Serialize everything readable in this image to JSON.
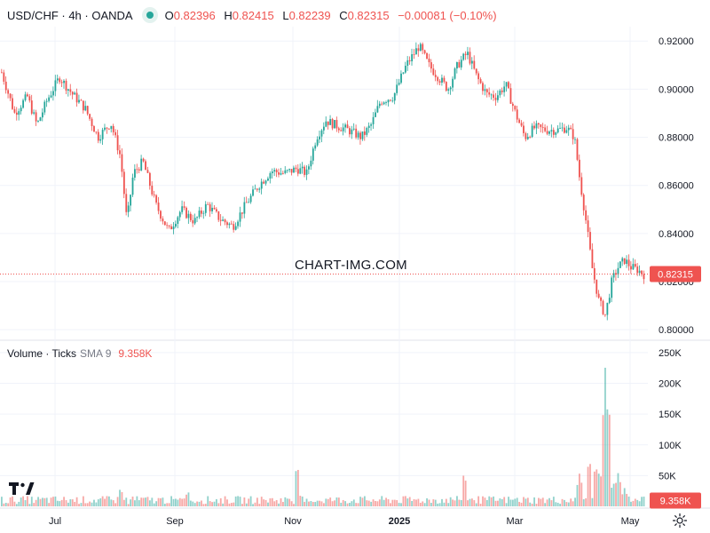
{
  "header": {
    "symbol": "USD/CHF · 4h · OANDA",
    "open_label": "O",
    "open": "0.82396",
    "high_label": "H",
    "high": "0.82415",
    "low_label": "L",
    "low": "0.82239",
    "close_label": "C",
    "close": "0.82315",
    "change": "−0.00081 (−0.10%)"
  },
  "volume_legend": {
    "title": "Volume · Ticks",
    "sma": "SMA 9",
    "value": "9.358K"
  },
  "watermark": "CHART-IMG.COM",
  "colors": {
    "up": "#26a69a",
    "down": "#ef5350",
    "grid": "#f0f3fa",
    "text": "#131722"
  },
  "icons": [
    "eye-icon",
    "tradingview-logo-icon",
    "gear-icon"
  ],
  "chart_data": [
    {
      "type": "candlestick",
      "title": "USD/CHF · 4h · OANDA",
      "price_label": "0.82315",
      "ylim": [
        0.796,
        0.926
      ],
      "y_ticks": [
        "0.80000",
        "0.82000",
        "0.84000",
        "0.86000",
        "0.88000",
        "0.90000",
        "0.92000"
      ],
      "x_ticks": [
        "Jul",
        "Sep",
        "Nov",
        "2025",
        "Mar",
        "May"
      ],
      "last_price": 0.82315,
      "series": [
        {
          "name": "USD/CHF",
          "keypoints": [
            [
              0.0,
              0.907
            ],
            [
              0.02,
              0.89
            ],
            [
              0.04,
              0.897
            ],
            [
              0.055,
              0.885
            ],
            [
              0.07,
              0.895
            ],
            [
              0.09,
              0.905
            ],
            [
              0.11,
              0.898
            ],
            [
              0.13,
              0.892
            ],
            [
              0.15,
              0.88
            ],
            [
              0.17,
              0.886
            ],
            [
              0.185,
              0.872
            ],
            [
              0.195,
              0.845
            ],
            [
              0.205,
              0.865
            ],
            [
              0.22,
              0.87
            ],
            [
              0.24,
              0.852
            ],
            [
              0.26,
              0.841
            ],
            [
              0.28,
              0.85
            ],
            [
              0.3,
              0.845
            ],
            [
              0.32,
              0.852
            ],
            [
              0.34,
              0.846
            ],
            [
              0.36,
              0.843
            ],
            [
              0.38,
              0.852
            ],
            [
              0.4,
              0.86
            ],
            [
              0.42,
              0.866
            ],
            [
              0.44,
              0.865
            ],
            [
              0.46,
              0.867
            ],
            [
              0.475,
              0.865
            ],
            [
              0.49,
              0.88
            ],
            [
              0.505,
              0.887
            ],
            [
              0.52,
              0.885
            ],
            [
              0.54,
              0.883
            ],
            [
              0.56,
              0.88
            ],
            [
              0.575,
              0.885
            ],
            [
              0.59,
              0.895
            ],
            [
              0.61,
              0.897
            ],
            [
              0.63,
              0.91
            ],
            [
              0.65,
              0.918
            ],
            [
              0.665,
              0.91
            ],
            [
              0.68,
              0.905
            ],
            [
              0.695,
              0.9
            ],
            [
              0.71,
              0.91
            ],
            [
              0.725,
              0.915
            ],
            [
              0.74,
              0.905
            ],
            [
              0.755,
              0.898
            ],
            [
              0.77,
              0.897
            ],
            [
              0.785,
              0.902
            ],
            [
              0.8,
              0.89
            ],
            [
              0.815,
              0.88
            ],
            [
              0.83,
              0.884
            ],
            [
              0.85,
              0.883
            ],
            [
              0.865,
              0.883
            ],
            [
              0.88,
              0.884
            ],
            [
              0.892,
              0.88
            ],
            [
              0.9,
              0.863
            ],
            [
              0.91,
              0.845
            ],
            [
              0.92,
              0.825
            ],
            [
              0.93,
              0.812
            ],
            [
              0.94,
              0.806
            ],
            [
              0.95,
              0.82
            ],
            [
              0.96,
              0.826
            ],
            [
              0.97,
              0.829
            ],
            [
              0.98,
              0.826
            ],
            [
              0.99,
              0.825
            ],
            [
              1.0,
              0.823
            ]
          ]
        }
      ]
    },
    {
      "type": "bar",
      "title": "Volume · Ticks",
      "sma_label": "SMA 9",
      "last_value": "9.358K",
      "ylim": [
        0,
        260000
      ],
      "y_ticks": [
        "50K",
        "100K",
        "150K",
        "200K",
        "250K"
      ],
      "series": [
        {
          "name": "Volume",
          "baseline": 9358,
          "spikes": [
            [
              0.185,
              30000
            ],
            [
              0.29,
              25000
            ],
            [
              0.46,
              70000
            ],
            [
              0.72,
              55000
            ],
            [
              0.9,
              55000
            ],
            [
              0.915,
              80000
            ],
            [
              0.925,
              70000
            ],
            [
              0.935,
              60000
            ],
            [
              0.94,
              230000
            ],
            [
              0.945,
              175000
            ],
            [
              0.955,
              45000
            ],
            [
              0.97,
              30000
            ]
          ]
        }
      ]
    }
  ]
}
